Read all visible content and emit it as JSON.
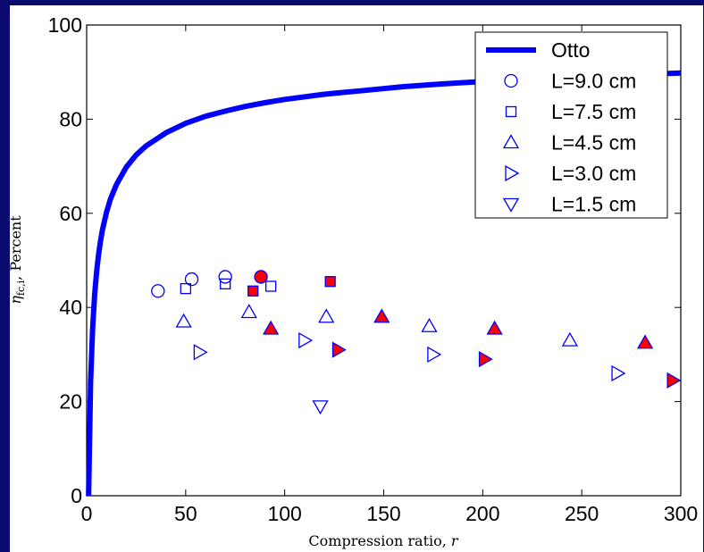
{
  "chart_data": {
    "type": "scatter",
    "title": "",
    "xlabel_italic_var": "r",
    "xlabel_text": "Compression ratio, ",
    "ylabel_main": "η",
    "ylabel_sub": "fc,i",
    "ylabel_rest": ", Percent",
    "xlim": [
      0,
      300
    ],
    "ylim": [
      0,
      100
    ],
    "x_ticks": [
      0,
      50,
      100,
      150,
      200,
      250,
      300
    ],
    "y_ticks": [
      0,
      20,
      40,
      60,
      80,
      100
    ],
    "grid": false,
    "legend_position": "top-right",
    "colors": {
      "frame": "#0a0a6e",
      "plot_bg": "#ffffff",
      "line": "#0000ff",
      "marker_edge": "#0000ff",
      "filled_marker": "#ff0000"
    },
    "otto_line": {
      "name": "Otto",
      "x": [
        1,
        2,
        3,
        4,
        5,
        6,
        7,
        8,
        10,
        12,
        15,
        20,
        25,
        30,
        40,
        50,
        60,
        70,
        80,
        90,
        100,
        120,
        140,
        160,
        180,
        200,
        220,
        240,
        260,
        280,
        300
      ],
      "y": [
        0,
        24.2,
        35.6,
        42.6,
        47.5,
        51.2,
        54.1,
        56.5,
        60.2,
        63.0,
        66.1,
        69.8,
        72.4,
        74.3,
        77.1,
        79.1,
        80.6,
        81.7,
        82.7,
        83.5,
        84.2,
        85.3,
        86.1,
        86.9,
        87.5,
        88.0,
        88.4,
        88.8,
        89.2,
        89.5,
        89.8
      ]
    },
    "series": [
      {
        "name": "L=9.0 cm",
        "marker": "circle",
        "points": [
          {
            "x": 36,
            "y": 43.5,
            "filled": false
          },
          {
            "x": 53,
            "y": 46,
            "filled": false
          },
          {
            "x": 70,
            "y": 46.5,
            "filled": false
          },
          {
            "x": 88,
            "y": 46.5,
            "filled": true
          }
        ]
      },
      {
        "name": "L=7.5 cm",
        "marker": "square",
        "points": [
          {
            "x": 50,
            "y": 44,
            "filled": false
          },
          {
            "x": 70,
            "y": 45,
            "filled": false
          },
          {
            "x": 84,
            "y": 43.5,
            "filled": true
          },
          {
            "x": 93,
            "y": 44.5,
            "filled": false
          },
          {
            "x": 123,
            "y": 45.5,
            "filled": true
          }
        ]
      },
      {
        "name": "L=4.5 cm",
        "marker": "triangle-up",
        "points": [
          {
            "x": 49,
            "y": 37,
            "filled": false
          },
          {
            "x": 82,
            "y": 39,
            "filled": false
          },
          {
            "x": 93,
            "y": 35.5,
            "filled": true
          },
          {
            "x": 121,
            "y": 38,
            "filled": false
          },
          {
            "x": 149,
            "y": 38,
            "filled": true
          },
          {
            "x": 173,
            "y": 36,
            "filled": false
          },
          {
            "x": 206,
            "y": 35.5,
            "filled": true
          },
          {
            "x": 244,
            "y": 33,
            "filled": false
          },
          {
            "x": 282,
            "y": 32.5,
            "filled": true
          }
        ]
      },
      {
        "name": "L=3.0 cm",
        "marker": "triangle-right",
        "points": [
          {
            "x": 57,
            "y": 30.5,
            "filled": false
          },
          {
            "x": 110,
            "y": 33,
            "filled": false
          },
          {
            "x": 127,
            "y": 31,
            "filled": true
          },
          {
            "x": 175,
            "y": 30,
            "filled": false
          },
          {
            "x": 201,
            "y": 29,
            "filled": true
          },
          {
            "x": 268,
            "y": 26,
            "filled": false
          },
          {
            "x": 296,
            "y": 24.5,
            "filled": true
          }
        ]
      },
      {
        "name": "L=1.5 cm",
        "marker": "triangle-down",
        "points": [
          {
            "x": 118,
            "y": 19,
            "filled": false
          }
        ]
      }
    ]
  }
}
